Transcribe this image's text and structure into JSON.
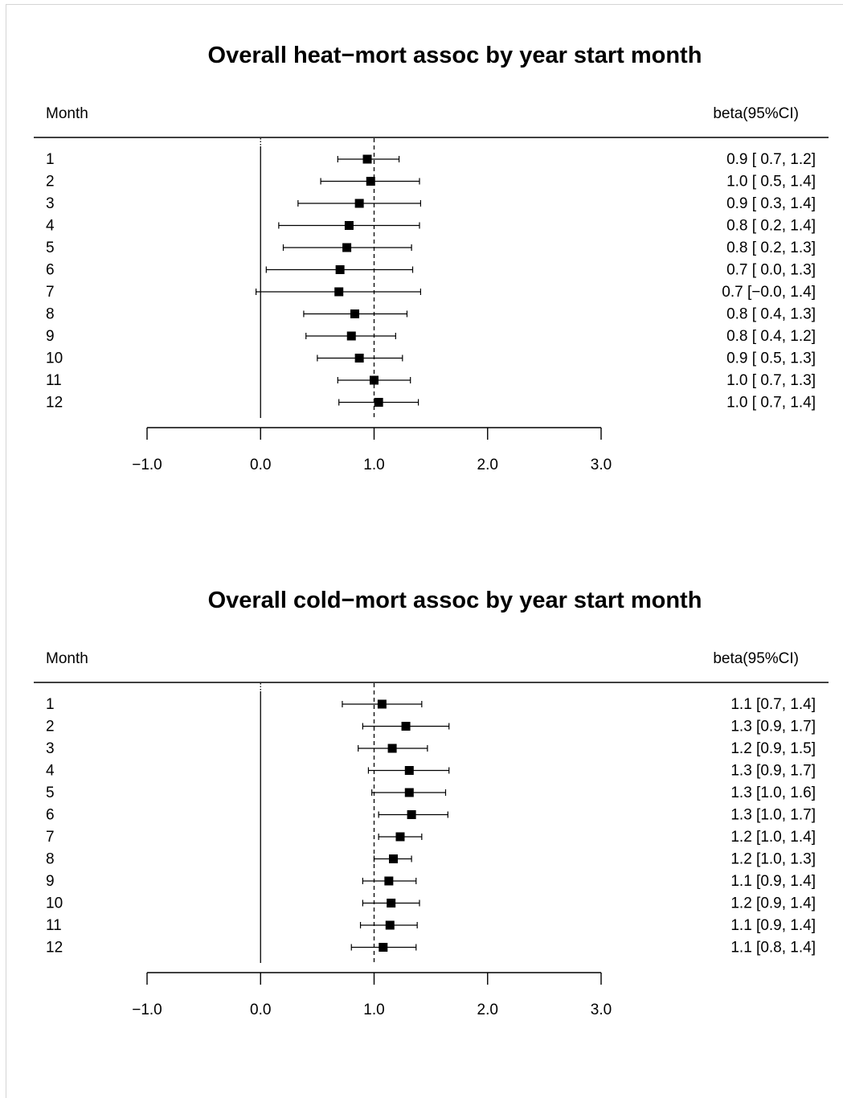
{
  "chart_data": [
    {
      "type": "forest",
      "title": "Overall heat−mort assoc by year start month",
      "label_header": "Month",
      "ci_header": "beta(95%CI)",
      "xlim": [
        -1.0,
        3.0
      ],
      "xticks": [
        "−1.0",
        "0.0",
        "1.0",
        "2.0",
        "3.0"
      ],
      "xtick_values": [
        -1.0,
        0.0,
        1.0,
        2.0,
        3.0
      ],
      "null_line": 0.0,
      "summary_line": 1.0,
      "rows": [
        {
          "label": "1",
          "est": 0.94,
          "lo": 0.68,
          "hi": 1.22,
          "ci_text": "0.9 [ 0.7, 1.2]"
        },
        {
          "label": "2",
          "est": 0.97,
          "lo": 0.53,
          "hi": 1.4,
          "ci_text": "1.0 [ 0.5, 1.4]"
        },
        {
          "label": "3",
          "est": 0.87,
          "lo": 0.33,
          "hi": 1.41,
          "ci_text": "0.9 [ 0.3, 1.4]"
        },
        {
          "label": "4",
          "est": 0.78,
          "lo": 0.16,
          "hi": 1.4,
          "ci_text": "0.8 [ 0.2, 1.4]"
        },
        {
          "label": "5",
          "est": 0.76,
          "lo": 0.2,
          "hi": 1.33,
          "ci_text": "0.8 [ 0.2, 1.3]"
        },
        {
          "label": "6",
          "est": 0.7,
          "lo": 0.05,
          "hi": 1.34,
          "ci_text": "0.7 [ 0.0, 1.3]"
        },
        {
          "label": "7",
          "est": 0.69,
          "lo": -0.04,
          "hi": 1.41,
          "ci_text": "0.7 [−0.0, 1.4]"
        },
        {
          "label": "8",
          "est": 0.83,
          "lo": 0.38,
          "hi": 1.29,
          "ci_text": "0.8 [ 0.4, 1.3]"
        },
        {
          "label": "9",
          "est": 0.8,
          "lo": 0.4,
          "hi": 1.19,
          "ci_text": "0.8 [ 0.4, 1.2]"
        },
        {
          "label": "10",
          "est": 0.87,
          "lo": 0.5,
          "hi": 1.25,
          "ci_text": "0.9 [ 0.5, 1.3]"
        },
        {
          "label": "11",
          "est": 1.0,
          "lo": 0.68,
          "hi": 1.32,
          "ci_text": "1.0 [ 0.7, 1.3]"
        },
        {
          "label": "12",
          "est": 1.04,
          "lo": 0.69,
          "hi": 1.39,
          "ci_text": "1.0 [ 0.7, 1.4]"
        }
      ]
    },
    {
      "type": "forest",
      "title": "Overall cold−mort assoc by year start month",
      "label_header": "Month",
      "ci_header": "beta(95%CI)",
      "xlim": [
        -1.0,
        3.0
      ],
      "xticks": [
        "−1.0",
        "0.0",
        "1.0",
        "2.0",
        "3.0"
      ],
      "xtick_values": [
        -1.0,
        0.0,
        1.0,
        2.0,
        3.0
      ],
      "null_line": 0.0,
      "summary_line": 1.0,
      "rows": [
        {
          "label": "1",
          "est": 1.07,
          "lo": 0.72,
          "hi": 1.42,
          "ci_text": "1.1 [0.7, 1.4]"
        },
        {
          "label": "2",
          "est": 1.28,
          "lo": 0.9,
          "hi": 1.66,
          "ci_text": "1.3 [0.9, 1.7]"
        },
        {
          "label": "3",
          "est": 1.16,
          "lo": 0.86,
          "hi": 1.47,
          "ci_text": "1.2 [0.9, 1.5]"
        },
        {
          "label": "4",
          "est": 1.31,
          "lo": 0.95,
          "hi": 1.66,
          "ci_text": "1.3 [0.9, 1.7]"
        },
        {
          "label": "5",
          "est": 1.31,
          "lo": 0.98,
          "hi": 1.63,
          "ci_text": "1.3 [1.0, 1.6]"
        },
        {
          "label": "6",
          "est": 1.33,
          "lo": 1.04,
          "hi": 1.65,
          "ci_text": "1.3 [1.0, 1.7]"
        },
        {
          "label": "7",
          "est": 1.23,
          "lo": 1.04,
          "hi": 1.42,
          "ci_text": "1.2 [1.0, 1.4]"
        },
        {
          "label": "8",
          "est": 1.17,
          "lo": 1.0,
          "hi": 1.33,
          "ci_text": "1.2 [1.0, 1.3]"
        },
        {
          "label": "9",
          "est": 1.13,
          "lo": 0.9,
          "hi": 1.37,
          "ci_text": "1.1 [0.9, 1.4]"
        },
        {
          "label": "10",
          "est": 1.15,
          "lo": 0.9,
          "hi": 1.4,
          "ci_text": "1.2 [0.9, 1.4]"
        },
        {
          "label": "11",
          "est": 1.14,
          "lo": 0.88,
          "hi": 1.38,
          "ci_text": "1.1 [0.9, 1.4]"
        },
        {
          "label": "12",
          "est": 1.08,
          "lo": 0.8,
          "hi": 1.37,
          "ci_text": "1.1 [0.8, 1.4]"
        }
      ]
    }
  ]
}
